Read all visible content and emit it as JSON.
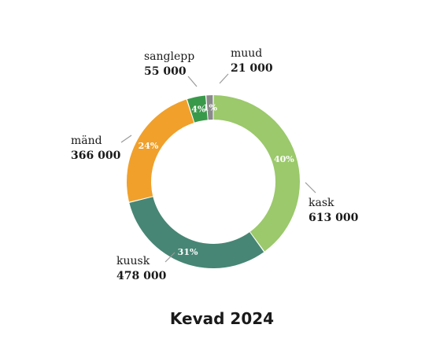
{
  "chart_data": {
    "type": "pie",
    "title": "Kevad 2024",
    "categories": [
      "kask",
      "kuusk",
      "mänd",
      "sanglepp",
      "muud"
    ],
    "values": [
      613000,
      478000,
      366000,
      55000,
      21000
    ],
    "value_labels": [
      "613 000",
      "478 000",
      "366 000",
      "55 000",
      "21 000"
    ],
    "percent_labels": [
      "40%",
      "31%",
      "24%",
      "4%",
      "1%"
    ],
    "colors": [
      "#9bc96b",
      "#478674",
      "#f0a02b",
      "#39994a",
      "#8a8a8a"
    ],
    "donut": true,
    "legend": "none"
  }
}
